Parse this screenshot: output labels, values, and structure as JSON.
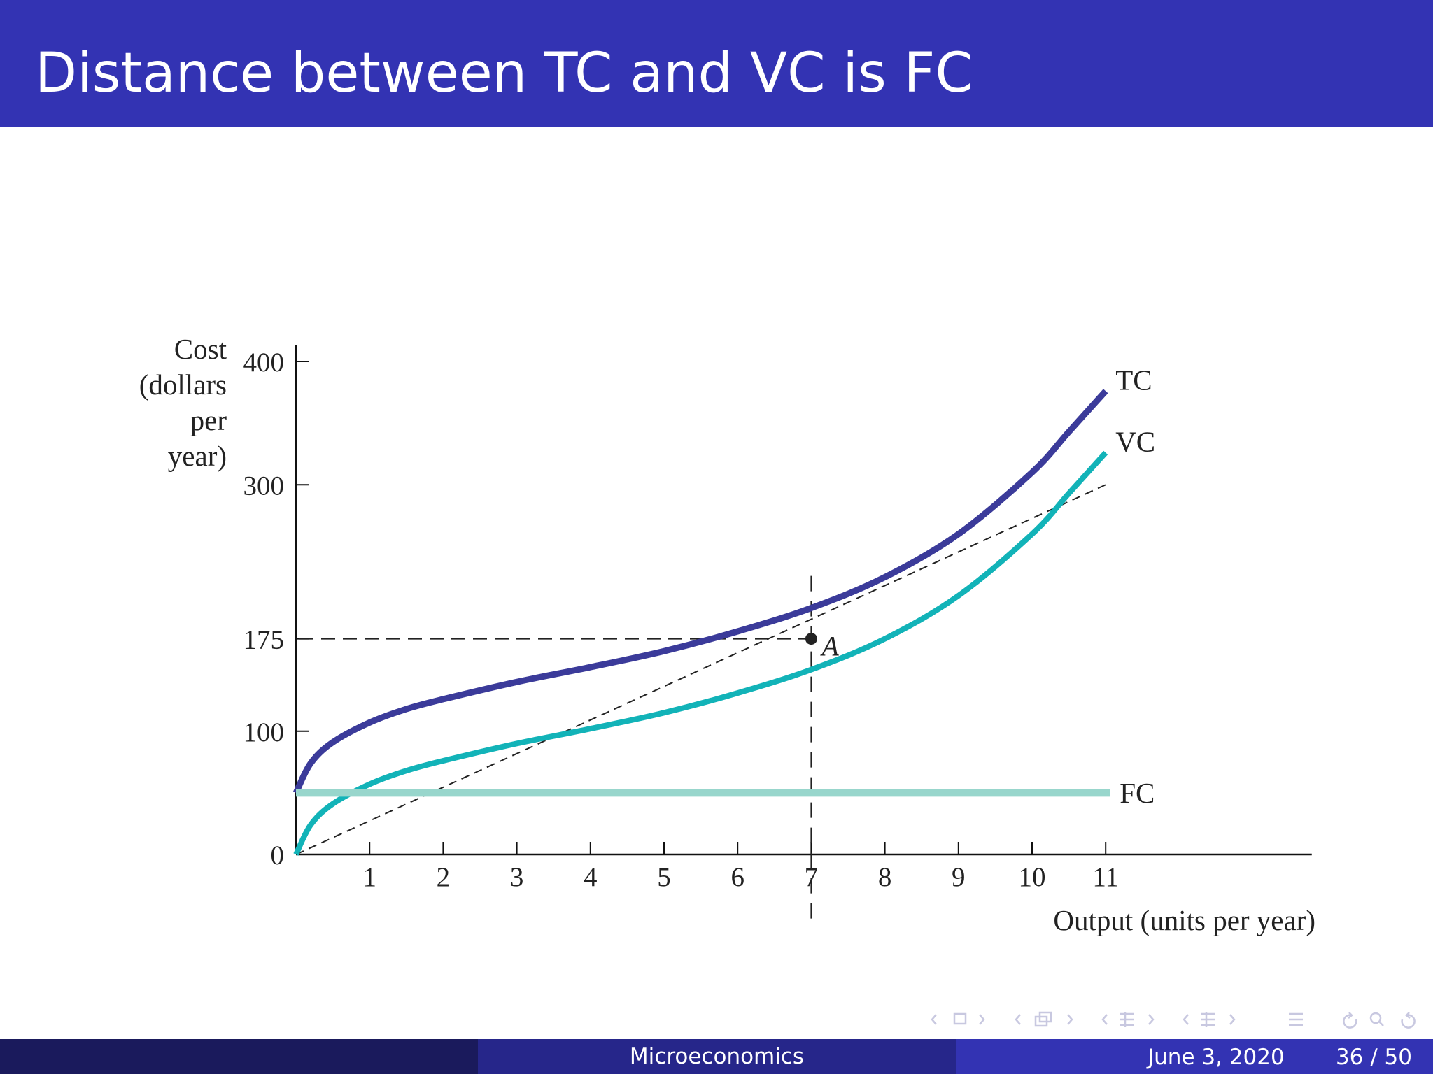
{
  "slide": {
    "title": "Distance between TC and VC is FC"
  },
  "footer": {
    "center": "Microeconomics",
    "date": "June 3, 2020",
    "page": "36 / 50"
  },
  "colors": {
    "header": "#3333b3",
    "tc_curve": "#3b3b9a",
    "vc_curve": "#12b3b8",
    "fc_line": "#98d6cc"
  },
  "chart_data": {
    "type": "line",
    "ylabel_lines": [
      "Cost",
      "(dollars",
      "per",
      "year)"
    ],
    "xlabel": "Output (units per year)",
    "x_ticks": [
      1,
      2,
      3,
      4,
      5,
      6,
      7,
      8,
      9,
      10,
      11
    ],
    "y_ticks": [
      0,
      100,
      175,
      300,
      400
    ],
    "xlim": [
      0,
      13.8
    ],
    "ylim": [
      0,
      400
    ],
    "series": [
      {
        "name": "TC",
        "x": [
          0,
          0.2,
          0.5,
          1,
          1.5,
          2,
          3,
          4,
          5,
          6,
          7,
          8,
          9,
          10,
          10.5,
          11
        ],
        "y": [
          50,
          74,
          91,
          107,
          118,
          126,
          140,
          152,
          165,
          181,
          200,
          225,
          260,
          310,
          343,
          376
        ]
      },
      {
        "name": "VC",
        "x": [
          0,
          0.2,
          0.5,
          1,
          1.5,
          2,
          3,
          4,
          5,
          6,
          7,
          8,
          9,
          10,
          10.5,
          11
        ],
        "y": [
          0,
          24,
          41,
          57,
          68,
          76,
          90,
          102,
          115,
          131,
          150,
          175,
          210,
          260,
          293,
          326
        ]
      },
      {
        "name": "FC",
        "x": [
          0,
          11
        ],
        "y": [
          50,
          50
        ]
      }
    ],
    "ray": {
      "x": [
        0,
        11
      ],
      "y": [
        0,
        300
      ]
    },
    "point": {
      "label": "A",
      "x": 7,
      "y": 175
    },
    "guides": {
      "x": 7,
      "y": 175
    }
  }
}
